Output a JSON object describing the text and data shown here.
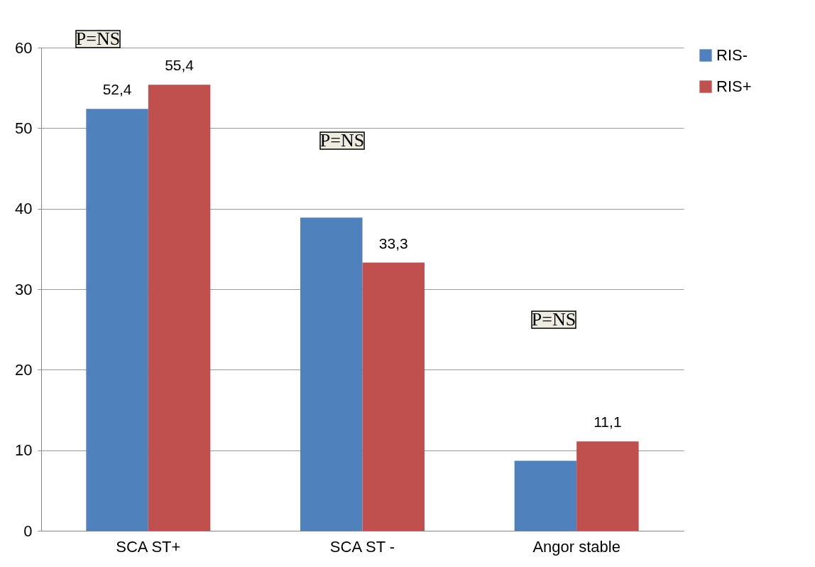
{
  "chart_data": {
    "type": "bar",
    "categories": [
      "SCA ST+",
      "SCA ST -",
      "Angor stable"
    ],
    "series": [
      {
        "name": "RIS-",
        "color": "#4f81bd",
        "values": [
          52.4,
          38.9,
          8.7
        ],
        "value_labels": [
          "52,4",
          null,
          null
        ]
      },
      {
        "name": "RIS+",
        "color": "#c0504d",
        "values": [
          55.4,
          33.3,
          11.1
        ],
        "value_labels": [
          "55,4",
          "33,3",
          "11,1"
        ]
      }
    ],
    "ylim": [
      0,
      60
    ],
    "yticks": [
      0,
      10,
      20,
      30,
      40,
      50,
      60
    ],
    "grid": "y",
    "legend": "right",
    "annotations": [
      "P=NS",
      "P=NS",
      "P=NS"
    ]
  }
}
